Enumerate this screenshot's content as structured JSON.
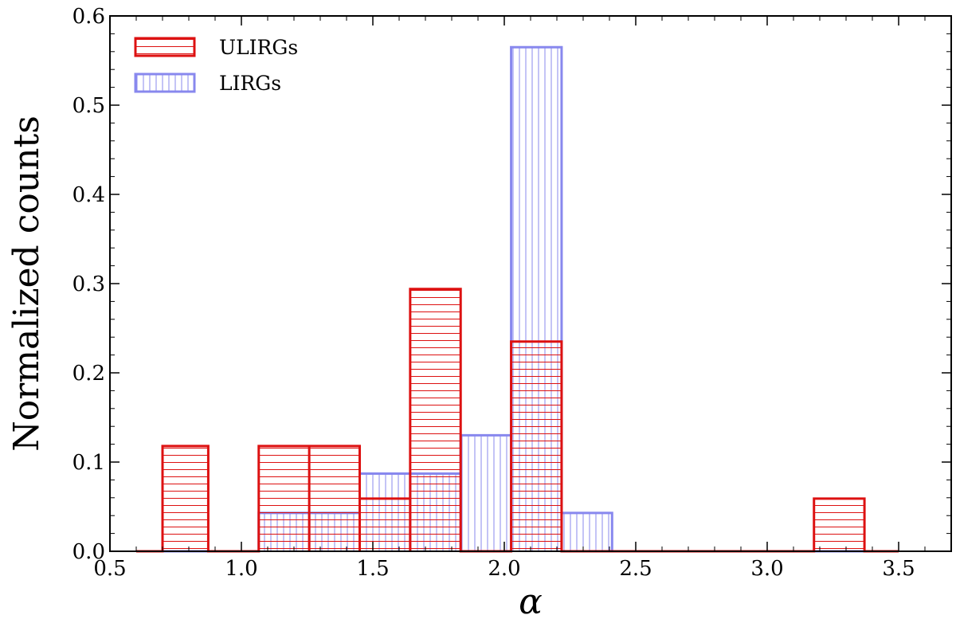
{
  "chart_data": {
    "type": "bar",
    "title": "",
    "xlabel": "α",
    "ylabel": "Normalized counts",
    "xlim": [
      0.5,
      3.7
    ],
    "ylim": [
      0.0,
      0.6
    ],
    "xticks": [
      0.5,
      1.0,
      1.5,
      2.0,
      2.5,
      3.0,
      3.5
    ],
    "xtick_labels": [
      "0.5",
      "1.0",
      "1.5",
      "2.0",
      "2.5",
      "3.0",
      "3.5"
    ],
    "yticks": [
      0.0,
      0.1,
      0.2,
      0.3,
      0.4,
      0.5,
      0.6
    ],
    "ytick_labels": [
      "0.0",
      "0.1",
      "0.2",
      "0.3",
      "0.4",
      "0.5",
      "0.6"
    ],
    "grid": false,
    "legend_position": "top-left",
    "bin_edges": [
      0.6,
      0.7,
      0.874,
      1.066,
      1.258,
      1.45,
      1.642,
      1.834,
      2.026,
      2.218,
      2.41,
      2.602,
      2.794,
      2.986,
      3.178,
      3.37,
      3.5
    ],
    "series": [
      {
        "name": "ULIRGs",
        "color": "#dd1111",
        "hatch": "horizontal",
        "values": [
          0.0,
          0.118,
          0.0,
          0.118,
          0.118,
          0.059,
          0.294,
          0.0,
          0.235,
          0.0,
          0.0,
          0.0,
          0.0,
          0.0,
          0.059,
          0.0
        ]
      },
      {
        "name": "LIRGs",
        "color": "#8888ee",
        "hatch": "vertical",
        "values": [
          0.0,
          0.0,
          0.0,
          0.043,
          0.043,
          0.087,
          0.087,
          0.13,
          0.565,
          0.043,
          0.0,
          0.0,
          0.0,
          0.0,
          0.0,
          0.0
        ]
      }
    ]
  }
}
